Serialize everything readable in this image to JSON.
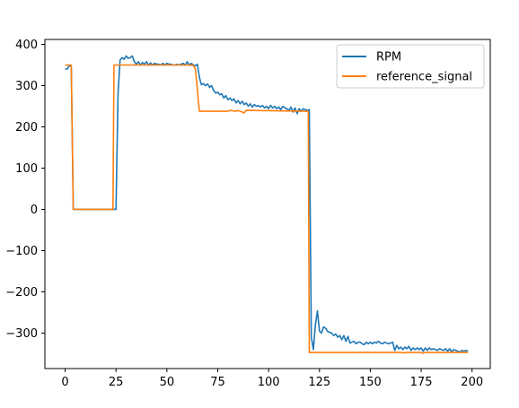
{
  "chart_data": {
    "type": "line",
    "title": "",
    "xlabel": "",
    "ylabel": "",
    "xlim": [
      -9.95,
      208.95
    ],
    "ylim": [
      -386,
      412
    ],
    "xticks": [
      0,
      25,
      50,
      75,
      100,
      125,
      150,
      175,
      200
    ],
    "xtick_labels": [
      "0",
      "25",
      "50",
      "75",
      "100",
      "125",
      "150",
      "175",
      "200"
    ],
    "yticks": [
      -300,
      -200,
      -100,
      0,
      100,
      200,
      300,
      400
    ],
    "ytick_labels": [
      "−300",
      "−200",
      "−100",
      "0",
      "100",
      "200",
      "300",
      "400"
    ],
    "grid": false,
    "legend_position": "top-right",
    "series": [
      {
        "name": "RPM",
        "color": "#1f77b4",
        "x": [
          0,
          1,
          2,
          3,
          4,
          5,
          6,
          7,
          8,
          9,
          10,
          11,
          12,
          13,
          14,
          15,
          16,
          17,
          18,
          19,
          20,
          21,
          22,
          23,
          24,
          25,
          26,
          27,
          28,
          29,
          30,
          31,
          32,
          33,
          34,
          35,
          36,
          37,
          38,
          39,
          40,
          41,
          42,
          43,
          44,
          45,
          46,
          47,
          48,
          49,
          50,
          51,
          52,
          53,
          54,
          55,
          56,
          57,
          58,
          59,
          60,
          61,
          62,
          63,
          64,
          65,
          66,
          67,
          68,
          69,
          70,
          71,
          72,
          73,
          74,
          75,
          76,
          77,
          78,
          79,
          80,
          81,
          82,
          83,
          84,
          85,
          86,
          87,
          88,
          89,
          90,
          91,
          92,
          93,
          94,
          95,
          96,
          97,
          98,
          99,
          100,
          101,
          102,
          103,
          104,
          105,
          106,
          107,
          108,
          109,
          110,
          111,
          112,
          113,
          114,
          115,
          116,
          117,
          118,
          119,
          120,
          121,
          122,
          123,
          124,
          125,
          126,
          127,
          128,
          129,
          130,
          131,
          132,
          133,
          134,
          135,
          136,
          137,
          138,
          139,
          140,
          141,
          142,
          143,
          144,
          145,
          146,
          147,
          148,
          149,
          150,
          151,
          152,
          153,
          154,
          155,
          156,
          157,
          158,
          159,
          160,
          161,
          162,
          163,
          164,
          165,
          166,
          167,
          168,
          169,
          170,
          171,
          172,
          173,
          174,
          175,
          176,
          177,
          178,
          179,
          180,
          181,
          182,
          183,
          184,
          185,
          186,
          187,
          188,
          189,
          190,
          191,
          192,
          193,
          194,
          195,
          196,
          197,
          198
        ],
        "y": [
          340,
          340,
          348,
          348,
          0,
          0,
          0,
          0,
          0,
          0,
          0,
          0,
          0,
          0,
          0,
          0,
          0,
          0,
          0,
          0,
          0,
          0,
          0,
          0,
          0,
          0,
          280,
          362,
          368,
          364,
          372,
          366,
          368,
          372,
          358,
          352,
          358,
          350,
          356,
          352,
          358,
          350,
          355,
          350,
          354,
          352,
          352,
          350,
          354,
          350,
          354,
          352,
          352,
          350,
          350,
          352,
          350,
          352,
          354,
          350,
          358,
          350,
          354,
          350,
          348,
          352,
          320,
          302,
          305,
          300,
          304,
          296,
          300,
          288,
          282,
          284,
          278,
          280,
          270,
          276,
          266,
          270,
          264,
          268,
          258,
          264,
          256,
          262,
          254,
          258,
          250,
          256,
          248,
          254,
          250,
          252,
          248,
          252,
          246,
          250,
          244,
          252,
          246,
          250,
          244,
          248,
          242,
          250,
          246,
          244,
          240,
          248,
          236,
          246,
          232,
          244,
          238,
          244,
          242,
          240,
          242,
          -310,
          -340,
          -280,
          -246,
          -295,
          -300,
          -285,
          -288,
          -296,
          -298,
          -300,
          -306,
          -302,
          -310,
          -306,
          -316,
          -306,
          -320,
          -308,
          -324,
          -322,
          -320,
          -326,
          -322,
          -322,
          -326,
          -328,
          -322,
          -326,
          -322,
          -326,
          -322,
          -324,
          -320,
          -324,
          -326,
          -322,
          -324,
          -326,
          -324,
          -322,
          -342,
          -330,
          -338,
          -334,
          -340,
          -334,
          -338,
          -332,
          -342,
          -336,
          -340,
          -336,
          -340,
          -336,
          -344,
          -336,
          -342,
          -336,
          -340,
          -338,
          -340,
          -342,
          -338,
          -340,
          -342,
          -338,
          -344,
          -338,
          -346,
          -340,
          -342,
          -344,
          -346,
          -342,
          -344,
          -342,
          -344
        ]
      },
      {
        "name": "reference_signal",
        "color": "#ff7f0e",
        "x": [
          0,
          3,
          4,
          23,
          23.5,
          24,
          60,
          63,
          64,
          65,
          65.5,
          66,
          80,
          81,
          84,
          85,
          88,
          89,
          119,
          119.5,
          120,
          165,
          166,
          168,
          175,
          176,
          177,
          198
        ],
        "y": [
          350,
          350,
          0,
          0,
          0,
          350,
          350,
          349,
          340,
          290,
          260,
          238,
          238,
          240,
          238,
          240,
          234,
          240,
          238,
          238,
          -347,
          -347,
          -348,
          -347,
          -347,
          -349,
          -347,
          -347
        ]
      }
    ]
  }
}
